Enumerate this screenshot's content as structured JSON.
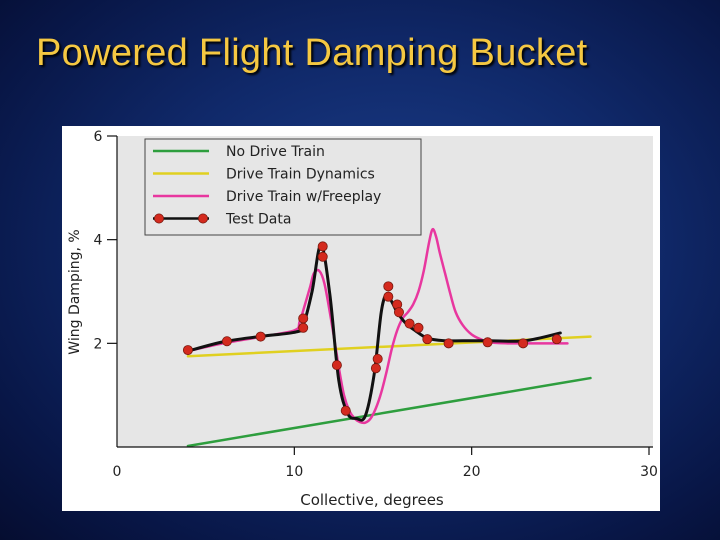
{
  "slide": {
    "title": "Powered Flight Damping Bucket"
  },
  "colors": {
    "title": "#f5c842",
    "plot_background": "#e6e6e6"
  },
  "chart_data": {
    "type": "line",
    "xlabel": "Collective, degrees",
    "ylabel": "Wing Damping, %",
    "xlim": [
      0,
      30
    ],
    "ylim": [
      0,
      6
    ],
    "x_ticks": [
      "0",
      "10",
      "20",
      "30"
    ],
    "y_ticks": [
      "2",
      "4",
      "6"
    ],
    "grid": false,
    "legend_position": "top-left",
    "series": [
      {
        "name": "No Drive Train",
        "color": "#2e9e3e",
        "x": [
          4,
          26.7
        ],
        "y": [
          0.02,
          1.33
        ]
      },
      {
        "name": "Drive Train Dynamics",
        "color": "#e0d020",
        "x": [
          4,
          26.7
        ],
        "y": [
          1.75,
          2.13
        ]
      },
      {
        "name": "Drive Train w/Freeplay",
        "color": "#e8379f",
        "x": [
          4,
          6,
          8,
          10,
          10.3,
          10.6,
          10.9,
          11.1,
          11.4,
          11.7,
          12.1,
          12.5,
          12.8,
          13.1,
          13.4,
          13.7,
          14,
          14.3,
          14.6,
          14.9,
          15.2,
          15.5,
          15.8,
          16.1,
          16.4,
          16.7,
          17,
          17.3,
          17.6,
          17.8,
          18,
          18.2,
          18.5,
          18.8,
          19.1,
          19.5,
          20,
          20.5,
          21,
          22,
          23,
          24,
          25.4
        ],
        "y": [
          1.85,
          2.0,
          2.12,
          2.25,
          2.42,
          2.75,
          3.1,
          3.35,
          3.4,
          3.15,
          2.4,
          1.55,
          1.0,
          0.7,
          0.55,
          0.48,
          0.47,
          0.55,
          0.75,
          1.05,
          1.45,
          1.9,
          2.25,
          2.48,
          2.6,
          2.75,
          3.0,
          3.4,
          3.95,
          4.2,
          4.05,
          3.75,
          3.35,
          2.95,
          2.6,
          2.35,
          2.17,
          2.08,
          2.02,
          2.0,
          2.0,
          2.0,
          2.0
        ]
      },
      {
        "name": "Test Data",
        "color": "#111111",
        "marker_color": "#d42a1e",
        "x": [
          4,
          6,
          8,
          10.1,
          10.5,
          11,
          11.5,
          12,
          12.5,
          13,
          13.5,
          14,
          14.5,
          14.9,
          15.2,
          15.5,
          15.8,
          16.3,
          16.8,
          17.5,
          18.5,
          19.5,
          21,
          23,
          25
        ],
        "y": [
          1.85,
          2.03,
          2.13,
          2.22,
          2.35,
          3.0,
          3.9,
          2.95,
          1.3,
          0.65,
          0.55,
          0.6,
          1.4,
          2.6,
          2.95,
          2.8,
          2.6,
          2.38,
          2.25,
          2.1,
          2.05,
          2.05,
          2.05,
          2.05,
          2.2
        ],
        "points_x": [
          4,
          6.2,
          8.1,
          10.5,
          10.5,
          11.6,
          11.6,
          12.4,
          12.9,
          14.6,
          14.7,
          15.3,
          15.3,
          15.8,
          15.9,
          16.5,
          17,
          17.5,
          18.7,
          20.9,
          22.9,
          24.8
        ],
        "points_y": [
          1.87,
          2.04,
          2.13,
          2.3,
          2.48,
          3.87,
          3.67,
          1.58,
          0.7,
          1.52,
          1.7,
          3.1,
          2.9,
          2.75,
          2.6,
          2.38,
          2.3,
          2.08,
          2.0,
          2.02,
          2.0,
          2.08
        ]
      }
    ]
  }
}
